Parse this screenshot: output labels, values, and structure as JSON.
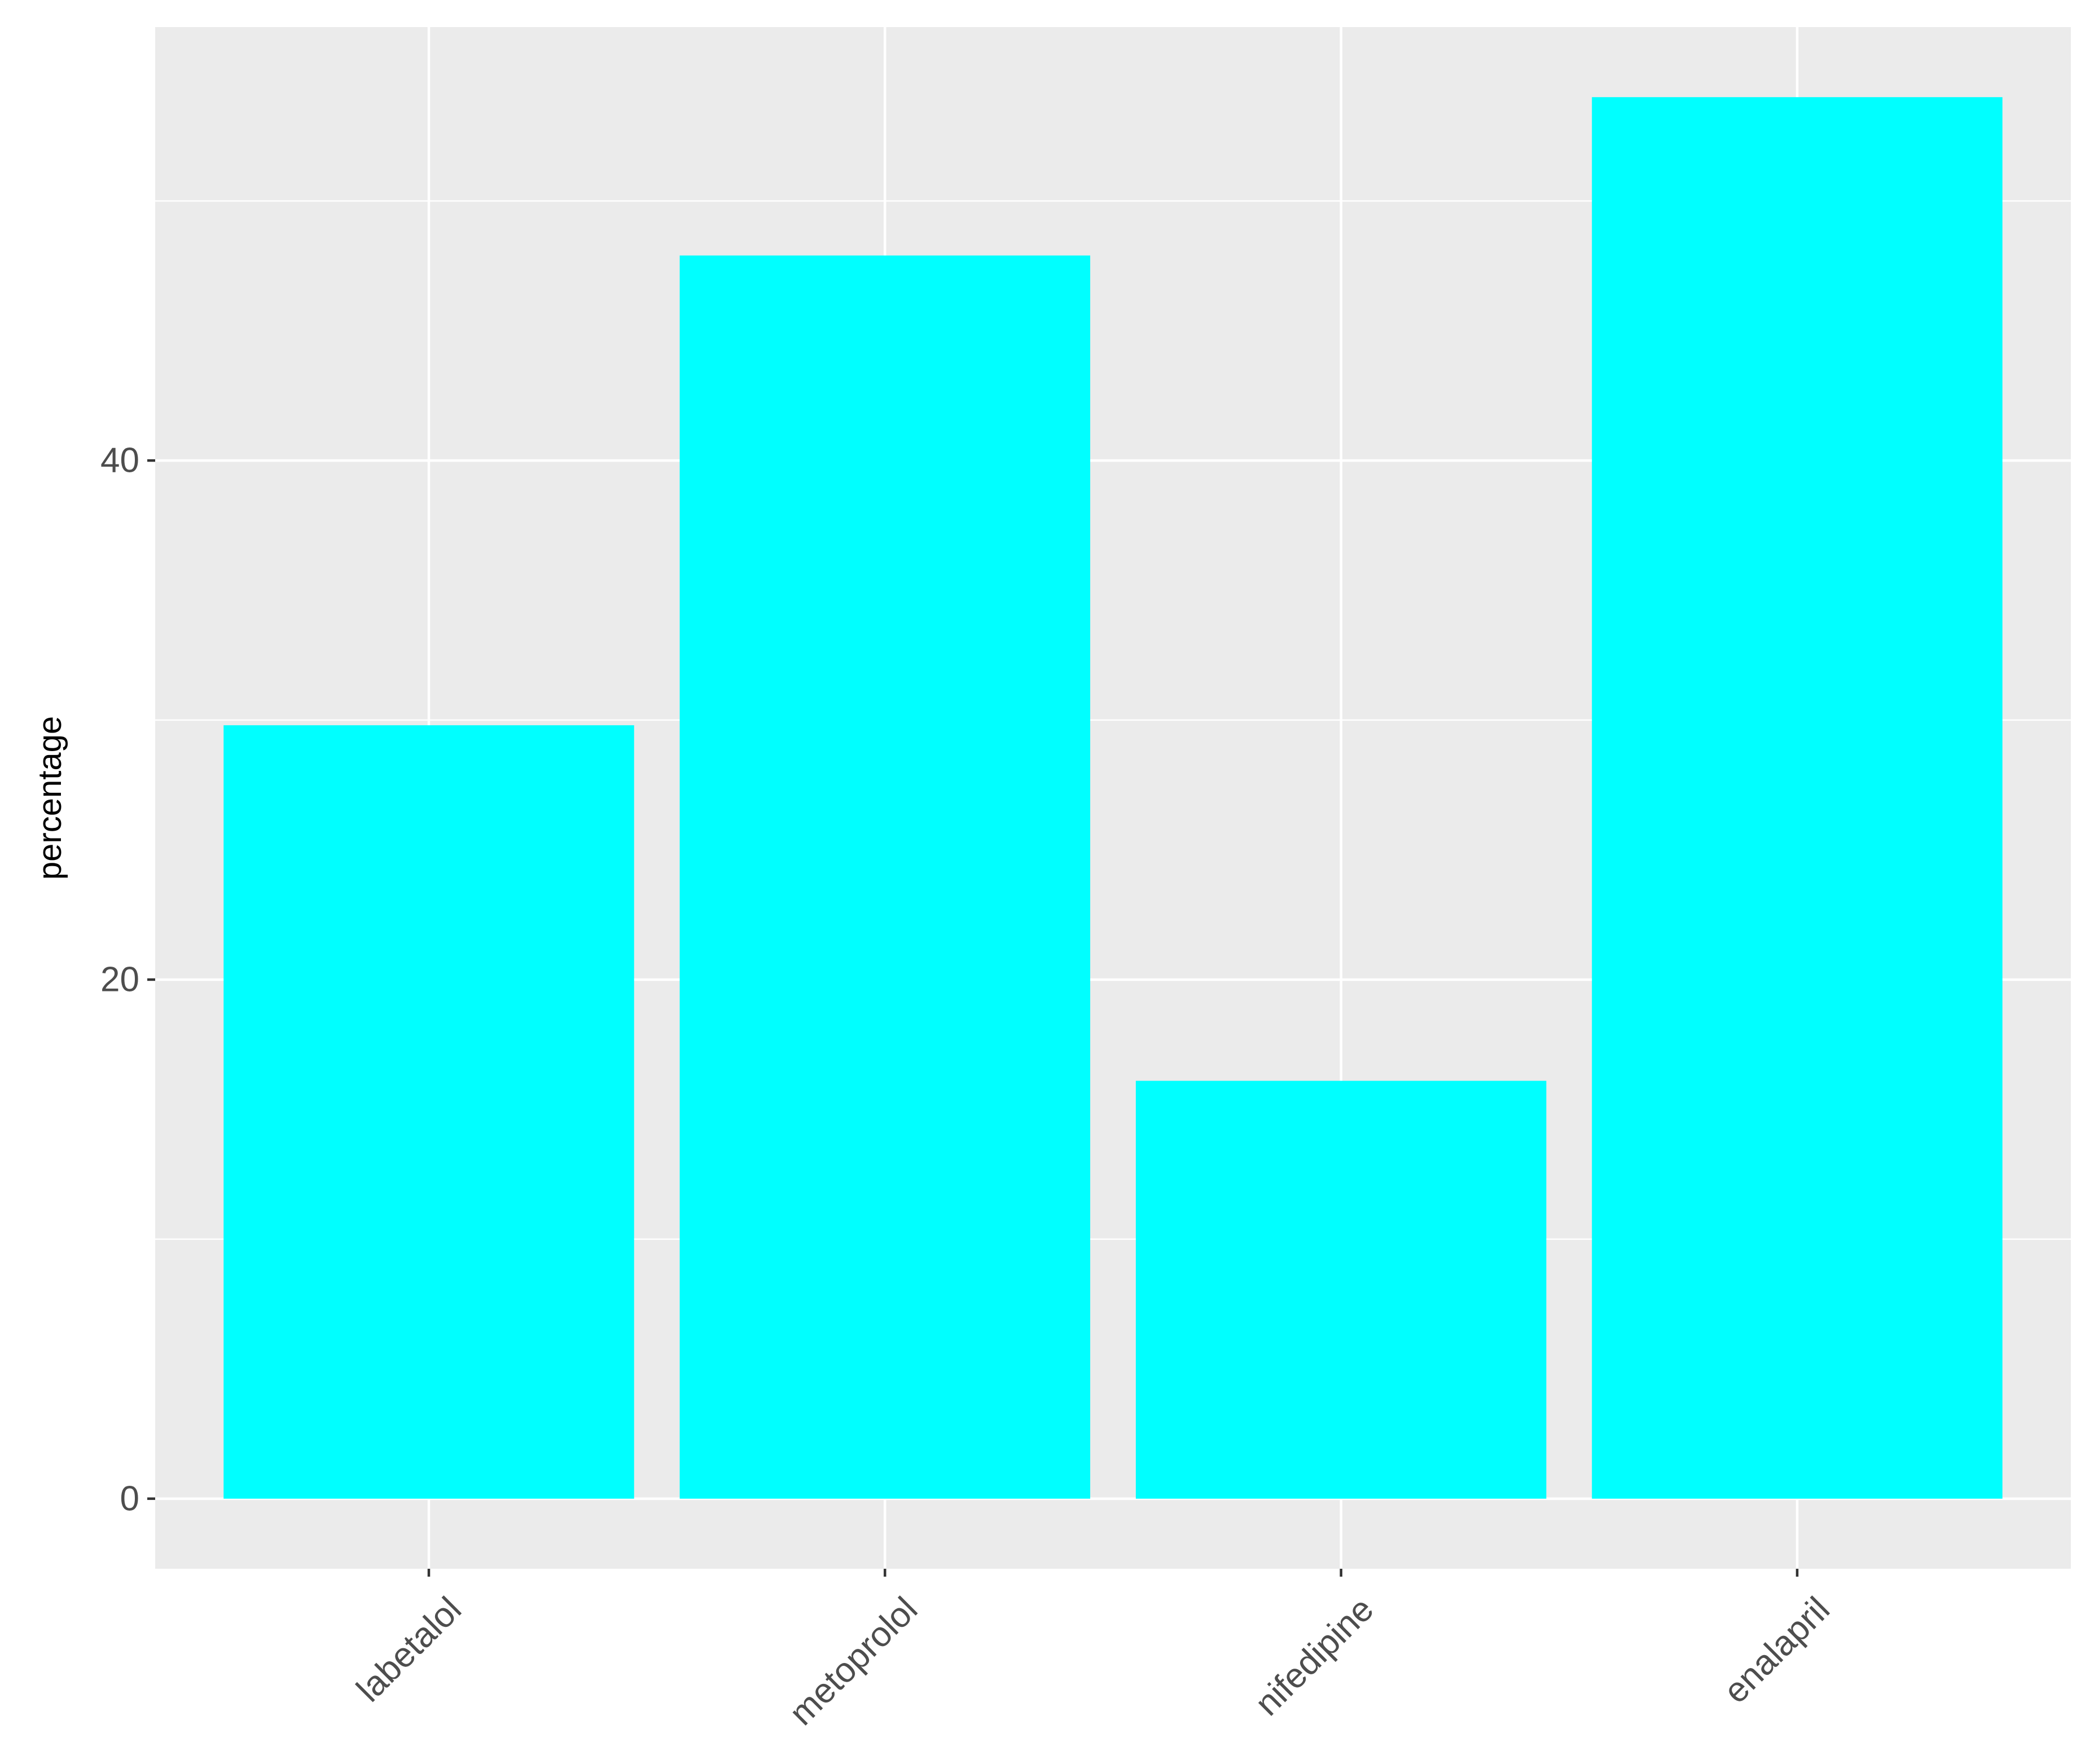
{
  "chart_data": {
    "type": "bar",
    "title": "",
    "xlabel": "",
    "ylabel": "percentage",
    "categories": [
      "labetalol",
      "metoprolol",
      "nifedipine",
      "enalapril"
    ],
    "values": [
      29.8,
      47.9,
      16.1,
      54.0
    ],
    "ylim": [
      -2.7,
      56.7
    ],
    "yticks": [
      0,
      20,
      40
    ],
    "grid": true,
    "legend": "none",
    "colors": {
      "bar": "#00ffff",
      "panel": "#ebebeb",
      "grid": "#ffffff",
      "tick_text": "#4d4d4d",
      "tick_mark": "#333333"
    }
  }
}
